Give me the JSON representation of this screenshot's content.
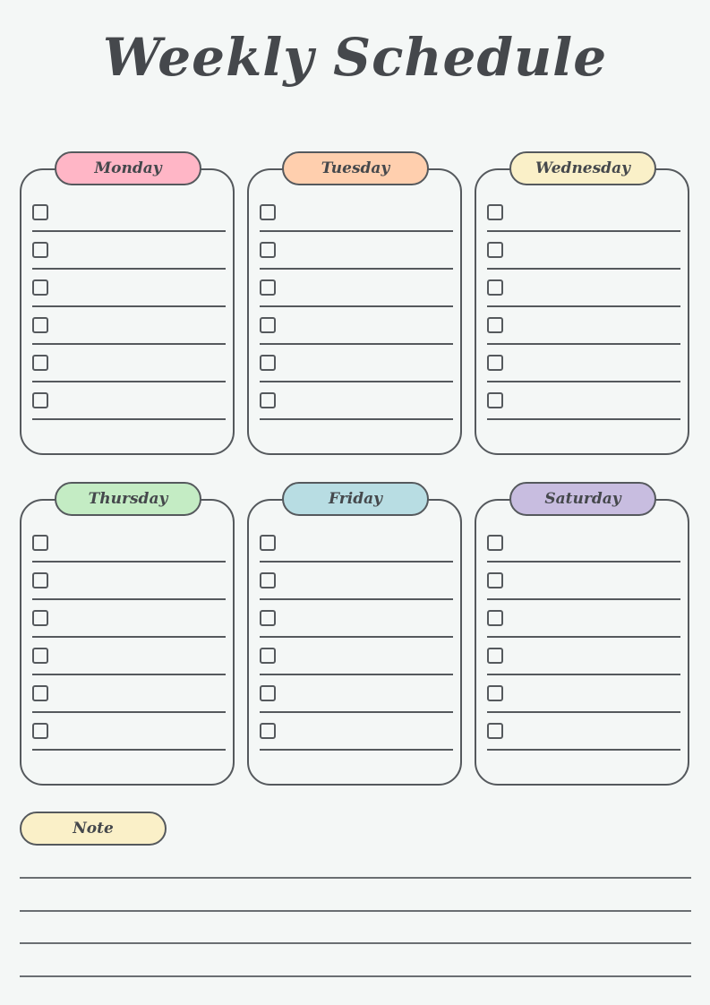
{
  "title": "Weekly Schedule",
  "days": [
    {
      "label": "Monday",
      "color": "#ffb6c6"
    },
    {
      "label": "Tuesday",
      "color": "#ffcfae"
    },
    {
      "label": "Wednesday",
      "color": "#faf0c8"
    },
    {
      "label": "Thursday",
      "color": "#c4ecc4"
    },
    {
      "label": "Friday",
      "color": "#b8dde3"
    },
    {
      "label": "Saturday",
      "color": "#c8bde0"
    }
  ],
  "tasks_per_day": 6,
  "note": {
    "label": "Note",
    "color": "#faf0c8",
    "lines": 4
  }
}
